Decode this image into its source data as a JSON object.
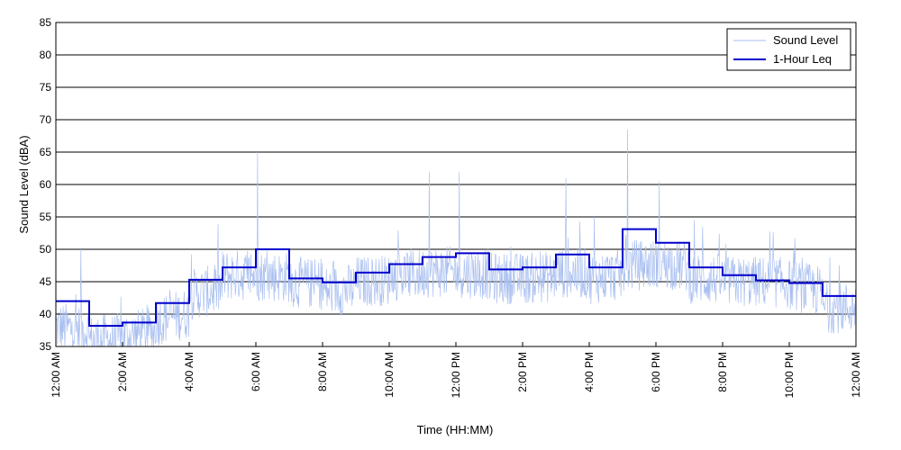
{
  "chart_data": {
    "type": "line",
    "title": "",
    "xlabel": "Time (HH:MM)",
    "ylabel": "Sound Level (dBA)",
    "ylim": [
      35,
      85
    ],
    "yticks": [
      35,
      40,
      45,
      50,
      55,
      60,
      65,
      70,
      75,
      80,
      85
    ],
    "xlim_hours": [
      0,
      24
    ],
    "xticks": [
      {
        "hour": 0,
        "label": "12:00 AM"
      },
      {
        "hour": 2,
        "label": "2:00 AM"
      },
      {
        "hour": 4,
        "label": "4:00 AM"
      },
      {
        "hour": 6,
        "label": "6:00 AM"
      },
      {
        "hour": 8,
        "label": "8:00 AM"
      },
      {
        "hour": 10,
        "label": "10:00 AM"
      },
      {
        "hour": 12,
        "label": "12:00 PM"
      },
      {
        "hour": 14,
        "label": "2:00 PM"
      },
      {
        "hour": 16,
        "label": "4:00 PM"
      },
      {
        "hour": 18,
        "label": "6:00 PM"
      },
      {
        "hour": 20,
        "label": "8:00 PM"
      },
      {
        "hour": 22,
        "label": "10:00 PM"
      },
      {
        "hour": 24,
        "label": "12:00 AM"
      }
    ],
    "grid": "horizontal",
    "legend_position": "top-right",
    "series": [
      {
        "name": "Sound Level",
        "color": "#a9bff0",
        "style": "thin-line",
        "hourly_mean": [
          38,
          36,
          36.5,
          39,
          43,
          46,
          46,
          45,
          43.5,
          45,
          46,
          46.5,
          46.5,
          45.5,
          45.5,
          46.5,
          45.5,
          47.5,
          48,
          45.5,
          45,
          45,
          44.5,
          41
        ],
        "peaks": [
          {
            "hour": 0.75,
            "value": 50
          },
          {
            "hour": 6.05,
            "value": 65
          },
          {
            "hour": 11.2,
            "value": 62
          },
          {
            "hour": 12.1,
            "value": 62
          },
          {
            "hour": 15.3,
            "value": 61
          },
          {
            "hour": 16.15,
            "value": 55
          },
          {
            "hour": 17.15,
            "value": 68.5
          },
          {
            "hour": 18.1,
            "value": 60.5
          },
          {
            "hour": 19.4,
            "value": 53.5
          }
        ]
      },
      {
        "name": "1-Hour Leq",
        "color": "#0000cc",
        "style": "step",
        "values": [
          42,
          38.2,
          38.7,
          41.7,
          45.3,
          47.2,
          50,
          45.5,
          44.9,
          46.4,
          47.7,
          48.8,
          49.4,
          46.9,
          47.2,
          49.2,
          47.2,
          53.1,
          51,
          47.2,
          46,
          45.2,
          44.8,
          42.8
        ]
      }
    ]
  }
}
